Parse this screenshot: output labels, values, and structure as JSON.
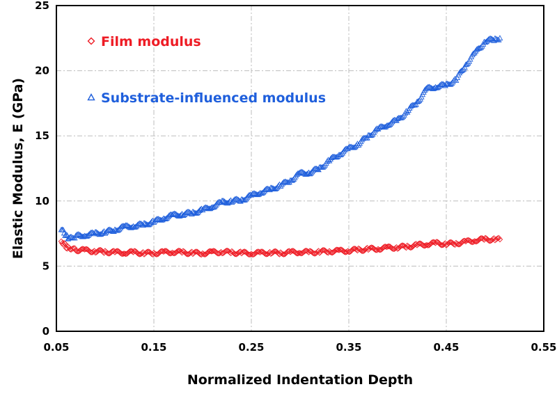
{
  "chart_data": {
    "type": "scatter",
    "xlabel": "Normalized Indentation Depth",
    "ylabel": "Elastic Modulus, E (GPa)",
    "xlim": [
      0.05,
      0.55
    ],
    "ylim": [
      0,
      25
    ],
    "xticks": [
      "0.05",
      "0.15",
      "0.25",
      "0.35",
      "0.45",
      "0.55"
    ],
    "yticks": [
      "0",
      "5",
      "10",
      "15",
      "20",
      "25"
    ],
    "grid": true,
    "legend_position": "top-left",
    "series": [
      {
        "name": "Film modulus",
        "marker": "diamond",
        "color": "#ee1c25",
        "x": [
          0.055,
          0.058,
          0.06,
          0.062,
          0.065,
          0.07,
          0.08,
          0.09,
          0.1,
          0.11,
          0.12,
          0.13,
          0.14,
          0.15,
          0.16,
          0.17,
          0.18,
          0.19,
          0.2,
          0.21,
          0.22,
          0.23,
          0.24,
          0.25,
          0.26,
          0.27,
          0.28,
          0.29,
          0.3,
          0.31,
          0.32,
          0.33,
          0.34,
          0.35,
          0.36,
          0.37,
          0.38,
          0.39,
          0.4,
          0.41,
          0.42,
          0.43,
          0.44,
          0.45,
          0.46,
          0.47,
          0.48,
          0.49,
          0.5,
          0.505
        ],
        "y": [
          6.9,
          6.7,
          6.5,
          6.4,
          6.3,
          6.25,
          6.2,
          6.15,
          6.1,
          6.05,
          6.05,
          6.05,
          6.0,
          6.0,
          6.05,
          6.1,
          6.05,
          6.0,
          6.0,
          6.05,
          6.1,
          6.05,
          6.0,
          6.0,
          6.0,
          6.05,
          6.0,
          6.05,
          6.1,
          6.05,
          6.1,
          6.15,
          6.15,
          6.2,
          6.25,
          6.3,
          6.35,
          6.4,
          6.45,
          6.5,
          6.6,
          6.7,
          6.75,
          6.7,
          6.75,
          6.85,
          7.0,
          7.05,
          7.05,
          7.05
        ]
      },
      {
        "name": "Substrate-influenced modulus",
        "marker": "triangle",
        "color": "#1f5fdc",
        "x": [
          0.055,
          0.058,
          0.06,
          0.062,
          0.065,
          0.07,
          0.08,
          0.09,
          0.1,
          0.11,
          0.12,
          0.13,
          0.14,
          0.15,
          0.16,
          0.17,
          0.18,
          0.19,
          0.2,
          0.21,
          0.22,
          0.23,
          0.24,
          0.25,
          0.26,
          0.27,
          0.28,
          0.29,
          0.3,
          0.31,
          0.32,
          0.33,
          0.34,
          0.35,
          0.36,
          0.37,
          0.38,
          0.39,
          0.4,
          0.41,
          0.42,
          0.43,
          0.44,
          0.45,
          0.46,
          0.47,
          0.48,
          0.49,
          0.5,
          0.505
        ],
        "y": [
          7.8,
          7.6,
          7.3,
          7.2,
          7.2,
          7.3,
          7.4,
          7.5,
          7.6,
          7.8,
          8.0,
          8.1,
          8.2,
          8.4,
          8.7,
          8.9,
          9.0,
          9.1,
          9.3,
          9.6,
          9.9,
          10.0,
          10.1,
          10.4,
          10.7,
          10.9,
          11.2,
          11.6,
          12.1,
          12.2,
          12.5,
          13.1,
          13.6,
          14.0,
          14.4,
          15.0,
          15.5,
          15.9,
          16.2,
          16.9,
          17.6,
          18.6,
          18.8,
          18.9,
          19.3,
          20.5,
          21.4,
          22.3,
          22.4,
          22.5
        ]
      }
    ]
  }
}
